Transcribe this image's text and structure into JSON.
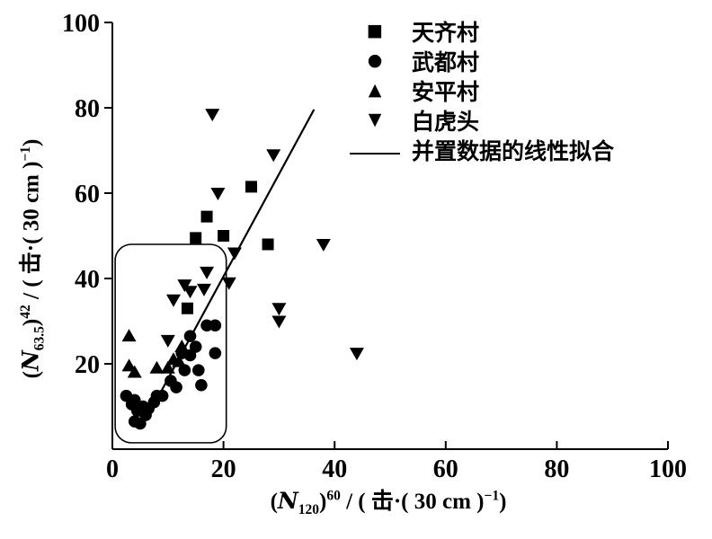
{
  "chart_data": {
    "type": "scatter",
    "title": "",
    "grid": false,
    "legend_position": "top-right-inside",
    "marker_color": "#000000",
    "background_color": "#ffffff",
    "x_range": [
      0,
      100
    ],
    "y_range": [
      0,
      100
    ],
    "x_ticks": [
      "0",
      "20",
      "40",
      "60",
      "80",
      "100"
    ],
    "y_ticks": [
      "20",
      "40",
      "60",
      "80",
      "100"
    ],
    "xlabel_plain": "(N120)^60 / (击·(30 cm)^-1)",
    "ylabel_plain": "(N63.5)^42 / (击·(30 cm)^-1)",
    "xlabel_parts": {
      "p1": "(",
      "var": "N",
      "sub": "120",
      "p2": ")",
      "sup": "60",
      "p3": " / ( 击·( 30 cm )",
      "sup2": "−1",
      "p4": ")"
    },
    "ylabel_parts": {
      "p1": "(",
      "var": "N",
      "sub": "63.5",
      "p2": ")",
      "sup": "42",
      "p3": " / ( 击·( 30 cm )",
      "sup2": "−1",
      "p4": ")"
    },
    "series": [
      {
        "name": "天齐村",
        "marker": "square",
        "points": [
          [
            17,
            54.5
          ],
          [
            15,
            49.5
          ],
          [
            20,
            50
          ],
          [
            25,
            61.5
          ],
          [
            28,
            48
          ],
          [
            13.5,
            33
          ]
        ]
      },
      {
        "name": "武都村",
        "marker": "circle",
        "points": [
          [
            17,
            29
          ],
          [
            18.5,
            29
          ],
          [
            18.5,
            22.5
          ],
          [
            14,
            26.5
          ],
          [
            15,
            24
          ],
          [
            14,
            22
          ],
          [
            12.5,
            22.5
          ],
          [
            13,
            18.5
          ],
          [
            15.5,
            18.5
          ],
          [
            16,
            15
          ],
          [
            10.5,
            16
          ],
          [
            11.5,
            14.5
          ],
          [
            9,
            12.5
          ],
          [
            2.5,
            12.5
          ],
          [
            3.5,
            10.5
          ],
          [
            4,
            11.5
          ],
          [
            4.5,
            9
          ],
          [
            5.5,
            10
          ],
          [
            6,
            8
          ],
          [
            6.5,
            9.5
          ],
          [
            4,
            6.5
          ],
          [
            5,
            6
          ],
          [
            7.5,
            11
          ],
          [
            8,
            12.5
          ]
        ]
      },
      {
        "name": "安平村",
        "marker": "triangle-up",
        "points": [
          [
            3,
            26.5
          ],
          [
            3,
            19.5
          ],
          [
            4,
            18
          ],
          [
            12.5,
            24
          ],
          [
            11,
            21
          ],
          [
            12,
            20.5
          ],
          [
            10,
            19
          ],
          [
            8,
            19
          ]
        ]
      },
      {
        "name": "白虎头",
        "marker": "triangle-down",
        "points": [
          [
            18,
            78.5
          ],
          [
            29,
            69
          ],
          [
            19,
            60
          ],
          [
            22,
            46
          ],
          [
            38,
            48
          ],
          [
            17,
            41.5
          ],
          [
            21,
            39
          ],
          [
            13,
            38.5
          ],
          [
            14,
            37
          ],
          [
            16.5,
            37.5
          ],
          [
            11,
            35
          ],
          [
            30,
            33
          ],
          [
            30,
            30
          ],
          [
            44,
            22.5
          ],
          [
            10,
            25.5
          ]
        ]
      }
    ],
    "fit_line": {
      "label": "并置数据的线性拟合",
      "from": [
        7.3,
        10
      ],
      "to": [
        36.3,
        79.6
      ]
    },
    "annotation_box": {
      "x0": 0.5,
      "x1": 20.5,
      "y0": 1.5,
      "y1": 48
    }
  },
  "legend": {
    "items": [
      {
        "marker": "square",
        "label": "天齐村"
      },
      {
        "marker": "circle",
        "label": "武都村"
      },
      {
        "marker": "triangle-up",
        "label": "安平村"
      },
      {
        "marker": "triangle-down",
        "label": "白虎头"
      },
      {
        "marker": "line",
        "label": "并置数据的线性拟合"
      }
    ]
  }
}
